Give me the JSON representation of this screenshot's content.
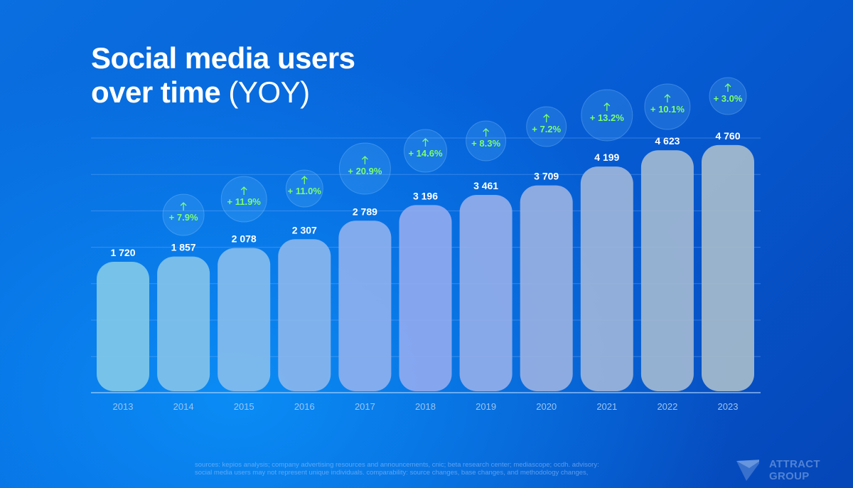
{
  "title": {
    "line1": "Social media users",
    "line2_bold": "over time",
    "line2_light": "(YOY)"
  },
  "chart_data": {
    "type": "bar",
    "categories": [
      "2013",
      "2014",
      "2015",
      "2016",
      "2017",
      "2018",
      "2019",
      "2020",
      "2021",
      "2022",
      "2023"
    ],
    "values": [
      1720,
      1857,
      2078,
      2307,
      2789,
      3196,
      3461,
      3709,
      4199,
      4623,
      4760
    ],
    "value_labels": [
      "1 720",
      "1 857",
      "2 078",
      "2 307",
      "2 789",
      "3 196",
      "3 461",
      "3 709",
      "4 199",
      "4 623",
      "4 760"
    ],
    "yoy_labels": [
      null,
      "+ 7.9%",
      "+ 11.9%",
      "+ 11.0%",
      "+ 20.9%",
      "+ 14.6%",
      "+ 8.3%",
      "+ 7.2%",
      "+ 13.2%",
      "+ 10.1%",
      "+ 3.0%"
    ],
    "yoy_values": [
      null,
      7.9,
      11.9,
      11.0,
      20.9,
      14.6,
      8.3,
      7.2,
      13.2,
      10.1,
      3.0
    ],
    "grid": true,
    "yoy_icon": "arrow-up-icon",
    "colors": {
      "bar_start": "#80c8e8",
      "bar_mid": "#90aaf0",
      "bar_end": "#a6bccc",
      "yoy_text": "#7dff6a",
      "axis_text": "#9cc4f0"
    }
  },
  "footer": {
    "line1": "sources: kepios analysis; company advertising resources and announcements, cnic; beta research center; mediascope; ocdh. advisory:",
    "line2": "social media users may not represent unique individuals. comparability: source changes, base changes, and methodology changes,"
  },
  "logo": {
    "text": "ATTRACT GROUP"
  }
}
